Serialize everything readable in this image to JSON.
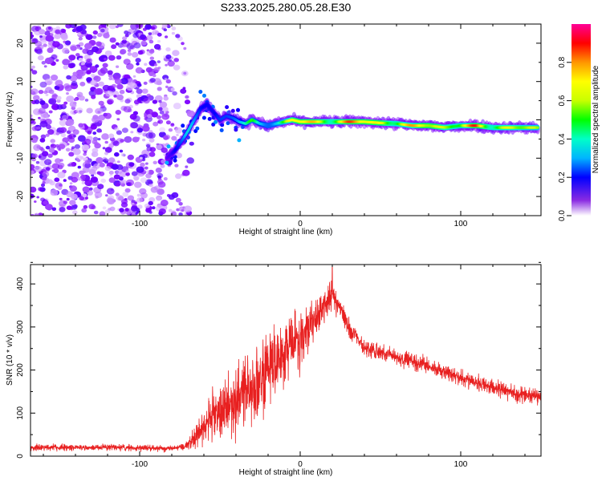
{
  "title": "S233.2025.280.05.28.E30",
  "chart_data": [
    {
      "type": "heatmap",
      "xlabel": "Height of straight line (km)",
      "ylabel": "Frequency (Hz)",
      "xlim": [
        -168,
        150
      ],
      "ylim": [
        -25,
        25
      ],
      "xticks": [
        -100,
        0,
        100
      ],
      "xtick_labels": [
        "-100",
        "0",
        "100"
      ],
      "yticks": [
        -20,
        -10,
        0,
        10,
        20
      ],
      "ytick_labels": [
        "-20",
        "-10",
        "0",
        "10",
        "20"
      ],
      "colorbar": {
        "label": "Normalized spectral amplitude",
        "range": [
          0,
          1
        ],
        "ticks": [
          0.0,
          0.2,
          0.4,
          0.6,
          0.8
        ],
        "tick_labels": [
          "0.0",
          "0.2",
          "0.4",
          "0.6",
          "0.8"
        ],
        "colors": [
          "#ffffff",
          "#7f00ff",
          "#0000ff",
          "#00b4ff",
          "#00ffc8",
          "#00ff00",
          "#c8ff00",
          "#ffff00",
          "#ff9600",
          "#ff0000",
          "#ff0096"
        ]
      },
      "noise_region": {
        "x": [
          -168,
          -70
        ],
        "amplitude": 0.1
      },
      "ridge": {
        "x": [
          -83,
          -78,
          -73,
          -70,
          -66,
          -62,
          -58,
          -54,
          -50,
          -46,
          -42,
          -38,
          -34,
          -30,
          -25,
          -20,
          -15,
          -10,
          -5,
          0,
          10,
          20,
          30,
          40,
          50,
          60,
          70,
          80,
          90,
          100,
          110,
          120,
          130,
          140,
          148
        ],
        "freq": [
          -10,
          -8,
          -5,
          -3,
          0,
          3,
          4,
          2,
          0,
          1,
          0.5,
          -0.5,
          -1,
          0,
          -1,
          -1.5,
          -1,
          -0.5,
          0,
          -0.5,
          -0.5,
          -0.5,
          -0.5,
          -0.5,
          -0.8,
          -1,
          -1.5,
          -1.5,
          -2,
          -1.5,
          -1.5,
          -2,
          -2,
          -2,
          -2
        ],
        "amp": [
          0.2,
          0.3,
          0.3,
          0.35,
          0.3,
          0.3,
          0.35,
          0.3,
          0.3,
          0.3,
          0.35,
          0.4,
          0.45,
          0.55,
          0.45,
          0.5,
          0.5,
          0.6,
          0.85,
          0.9,
          0.88,
          0.8,
          0.9,
          0.95,
          0.9,
          0.75,
          0.8,
          0.95,
          0.8,
          0.7,
          0.95,
          0.75,
          0.8,
          0.7,
          0.65
        ]
      }
    },
    {
      "type": "line",
      "xlabel": "Height of straight line (km)",
      "ylabel": "SNR (10 * v/v)",
      "xlim": [
        -168,
        150
      ],
      "ylim": [
        0,
        445
      ],
      "xticks": [
        -100,
        0,
        100
      ],
      "xtick_labels": [
        "-100",
        "0",
        "100"
      ],
      "yticks": [
        0,
        100,
        200,
        300,
        400
      ],
      "ytick_labels": [
        "0",
        "100",
        "200",
        "300",
        "400"
      ],
      "color": "#e82020",
      "series": [
        {
          "name": "SNR",
          "x": [
            -168,
            -140,
            -110,
            -90,
            -80,
            -72,
            -65,
            -60,
            -55,
            -50,
            -45,
            -40,
            -35,
            -30,
            -25,
            -20,
            -15,
            -10,
            -5,
            0,
            5,
            10,
            15,
            20,
            25,
            30,
            35,
            40,
            50,
            60,
            70,
            80,
            90,
            100,
            110,
            120,
            130,
            140,
            150
          ],
          "baseline": [
            20,
            20,
            20,
            18,
            18,
            22,
            40,
            70,
            90,
            105,
            120,
            130,
            140,
            160,
            180,
            210,
            220,
            240,
            255,
            265,
            290,
            320,
            350,
            370,
            345,
            300,
            280,
            250,
            240,
            230,
            220,
            210,
            195,
            180,
            170,
            160,
            150,
            140,
            140
          ],
          "noise": [
            8,
            8,
            8,
            8,
            8,
            8,
            30,
            45,
            60,
            70,
            80,
            90,
            95,
            100,
            100,
            95,
            90,
            85,
            80,
            70,
            60,
            50,
            40,
            35,
            30,
            25,
            20,
            20,
            20,
            20,
            20,
            20,
            20,
            20,
            20,
            20,
            20,
            20,
            20
          ],
          "peak": {
            "x": 20,
            "y": 440
          }
        }
      ]
    }
  ]
}
